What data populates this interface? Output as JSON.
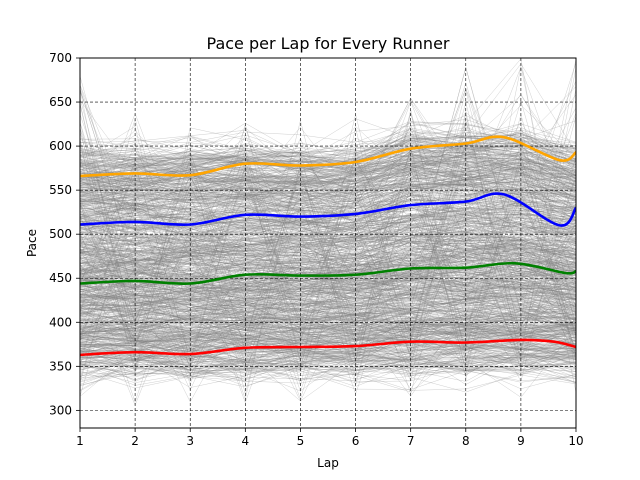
{
  "chart_data": {
    "type": "line",
    "title": "Pace per Lap for Every Runner",
    "xlabel": "Lap",
    "ylabel": "Pace",
    "xlim": [
      1,
      10
    ],
    "ylim": [
      280,
      700
    ],
    "x_ticks": [
      1,
      2,
      3,
      4,
      5,
      6,
      7,
      8,
      9,
      10
    ],
    "y_ticks": [
      300,
      350,
      400,
      450,
      500,
      550,
      600,
      650,
      700
    ],
    "grid": true,
    "grid_style": "dashed",
    "background_runner_lines": {
      "color": "#808080",
      "band_min": [
        300,
        300,
        300,
        305,
        305,
        305,
        310,
        310,
        305,
        300
      ],
      "band_max": [
        690,
        640,
        625,
        630,
        630,
        640,
        660,
        690,
        700,
        700
      ]
    },
    "series": [
      {
        "color": "#ffa500",
        "x": [
          1,
          2,
          3,
          4,
          5,
          6,
          7,
          8,
          8.7,
          9.7,
          10
        ],
        "values": [
          566,
          569,
          567,
          580,
          578,
          582,
          597,
          603,
          610,
          584,
          593
        ]
      },
      {
        "color": "#0000ff",
        "x": [
          1,
          2,
          3,
          4,
          5,
          6,
          7,
          8,
          8.7,
          9.7,
          10
        ],
        "values": [
          511,
          514,
          511,
          522,
          520,
          523,
          533,
          537,
          545,
          510,
          530
        ]
      },
      {
        "color": "#008000",
        "x": [
          1,
          2,
          3,
          4,
          5,
          6,
          7,
          8,
          8.9,
          9.8,
          10
        ],
        "values": [
          444,
          447,
          444,
          454,
          453,
          454,
          461,
          462,
          467,
          456,
          458
        ]
      },
      {
        "color": "#ff0000",
        "x": [
          1,
          2,
          3,
          4,
          5,
          6,
          7,
          8,
          9,
          9.6,
          10
        ],
        "values": [
          363,
          366,
          364,
          371,
          372,
          373,
          378,
          377,
          380,
          378,
          372
        ]
      }
    ]
  }
}
